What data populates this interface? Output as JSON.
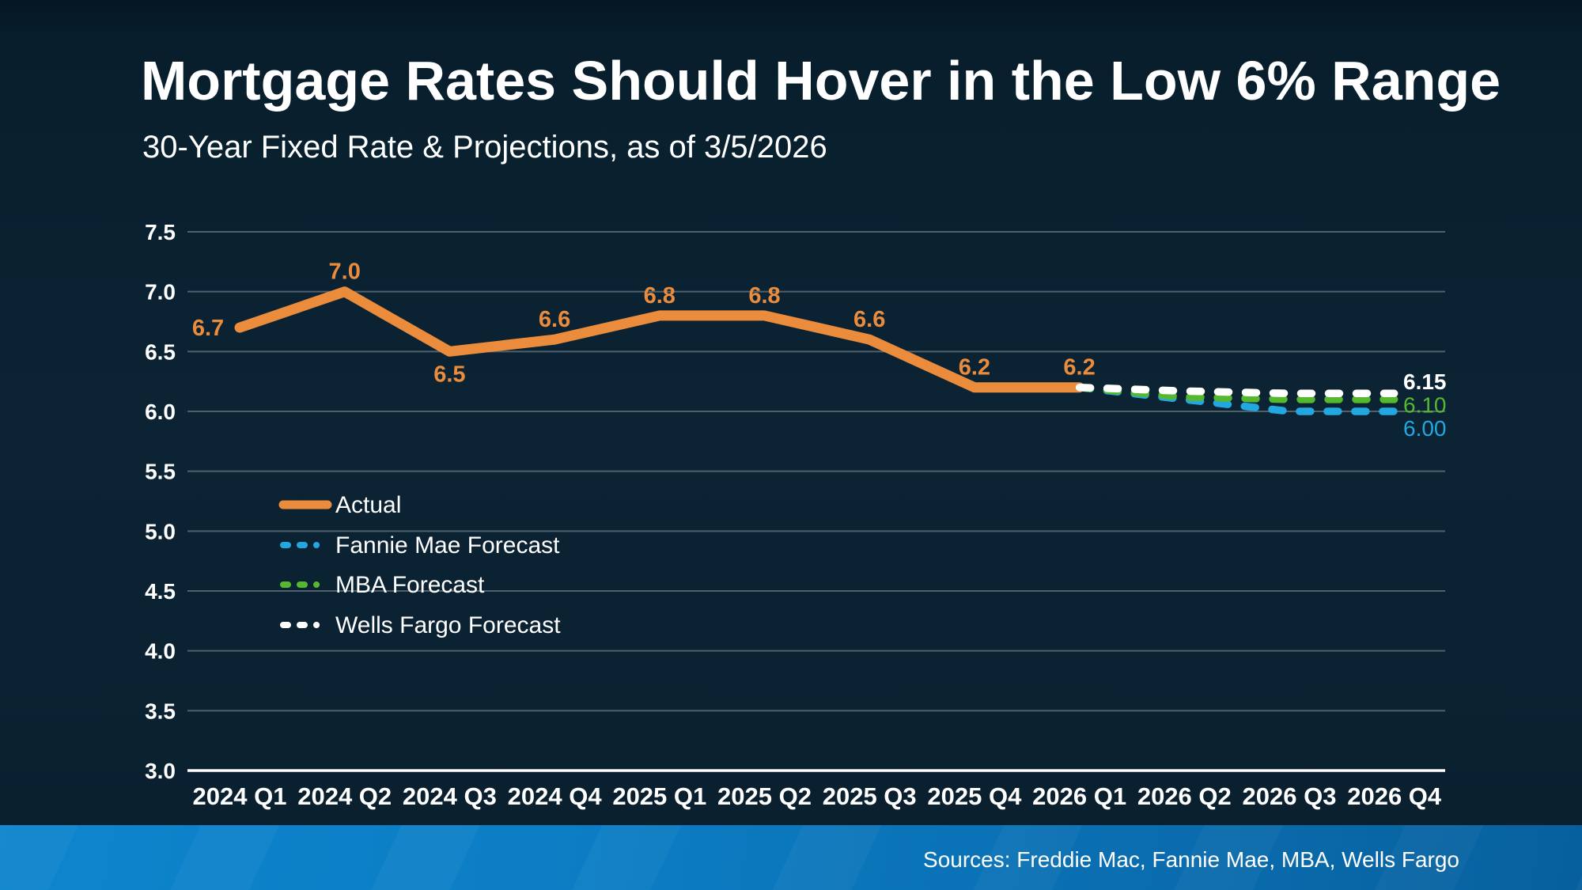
{
  "slide": {
    "title": "Mortgage Rates Should Hover in the Low 6% Range",
    "subtitle": "30-Year Fixed Rate & Projections, as of 3/5/2026",
    "sources": "Sources: Freddie Mac, Fannie Mae, MBA, Wells Fargo"
  },
  "colors": {
    "background": "#0B2333",
    "accent_orange": "#EB8B3C",
    "accent_blue": "#22A7E0",
    "accent_green": "#55B82F",
    "white": "#FFFFFF",
    "gridline": "#51616C",
    "footer_blue_left": "#0D85CD",
    "footer_blue_right": "#07609D"
  },
  "chart_data": {
    "type": "line",
    "title": "30-Year Fixed Rate & Projections, as of 3/5/2026",
    "categories": [
      "2024 Q1",
      "2024 Q2",
      "2024 Q3",
      "2024 Q4",
      "2025 Q1",
      "2025 Q2",
      "2025 Q3",
      "2025 Q4",
      "2026 Q1",
      "2026 Q2",
      "2026 Q3",
      "2026 Q4"
    ],
    "xlabel": "",
    "ylabel": "",
    "y_axis": {
      "min": 3.0,
      "max": 7.5,
      "step": 0.5,
      "tick_labels": [
        "3.0",
        "3.5",
        "4.0",
        "4.5",
        "5.0",
        "5.5",
        "6.0",
        "6.5",
        "7.0",
        "7.5"
      ]
    },
    "grid": true,
    "legend_position": "inside-left",
    "series": [
      {
        "name": "Actual",
        "color": "#EB8B3C",
        "dash": false,
        "start_index": 0,
        "values": [
          6.7,
          7.0,
          6.5,
          6.6,
          6.8,
          6.8,
          6.6,
          6.2,
          6.2
        ],
        "point_labels": [
          "6.7",
          "7.0",
          "6.5",
          "6.6",
          "6.8",
          "6.8",
          "6.6",
          "6.2",
          "6.2"
        ]
      },
      {
        "name": "Fannie Mae Forecast",
        "color": "#22A7E0",
        "dash": true,
        "start_index": 8,
        "values": [
          6.2,
          6.1,
          6.0,
          6.0
        ],
        "end_label": "6.00"
      },
      {
        "name": "MBA Forecast",
        "color": "#55B82F",
        "dash": true,
        "start_index": 8,
        "values": [
          6.2,
          6.12,
          6.1,
          6.1
        ],
        "end_label": "6.10"
      },
      {
        "name": "Wells Fargo Forecast",
        "color": "#FFFFFF",
        "dash": true,
        "start_index": 8,
        "values": [
          6.2,
          6.17,
          6.15,
          6.15
        ],
        "end_label": "6.15"
      }
    ]
  }
}
